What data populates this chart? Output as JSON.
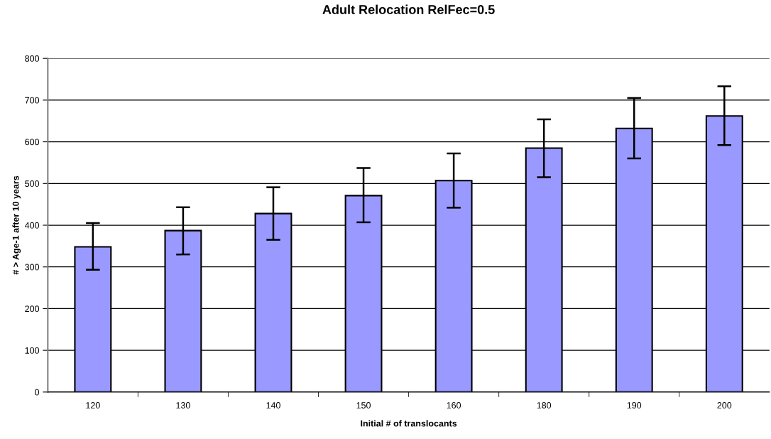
{
  "chart_data": {
    "type": "bar",
    "title": "Adult Relocation RelFec=0.5",
    "xlabel": "Initial # of translocants",
    "ylabel": "# > Age-1 after 10 years",
    "categories": [
      "120",
      "130",
      "140",
      "150",
      "160",
      "180",
      "190",
      "200"
    ],
    "values": [
      348,
      387,
      428,
      471,
      507,
      585,
      632,
      662
    ],
    "errors": [
      [
        293,
        405
      ],
      [
        330,
        443
      ],
      [
        365,
        491
      ],
      [
        407,
        537
      ],
      [
        442,
        572
      ],
      [
        515,
        654
      ],
      [
        560,
        705
      ],
      [
        592,
        733
      ]
    ],
    "color": "#9999ff",
    "ylim": [
      0,
      800
    ],
    "yticks": [
      0,
      100,
      200,
      300,
      400,
      500,
      600,
      700,
      800
    ],
    "grid": "y",
    "legend": false
  }
}
